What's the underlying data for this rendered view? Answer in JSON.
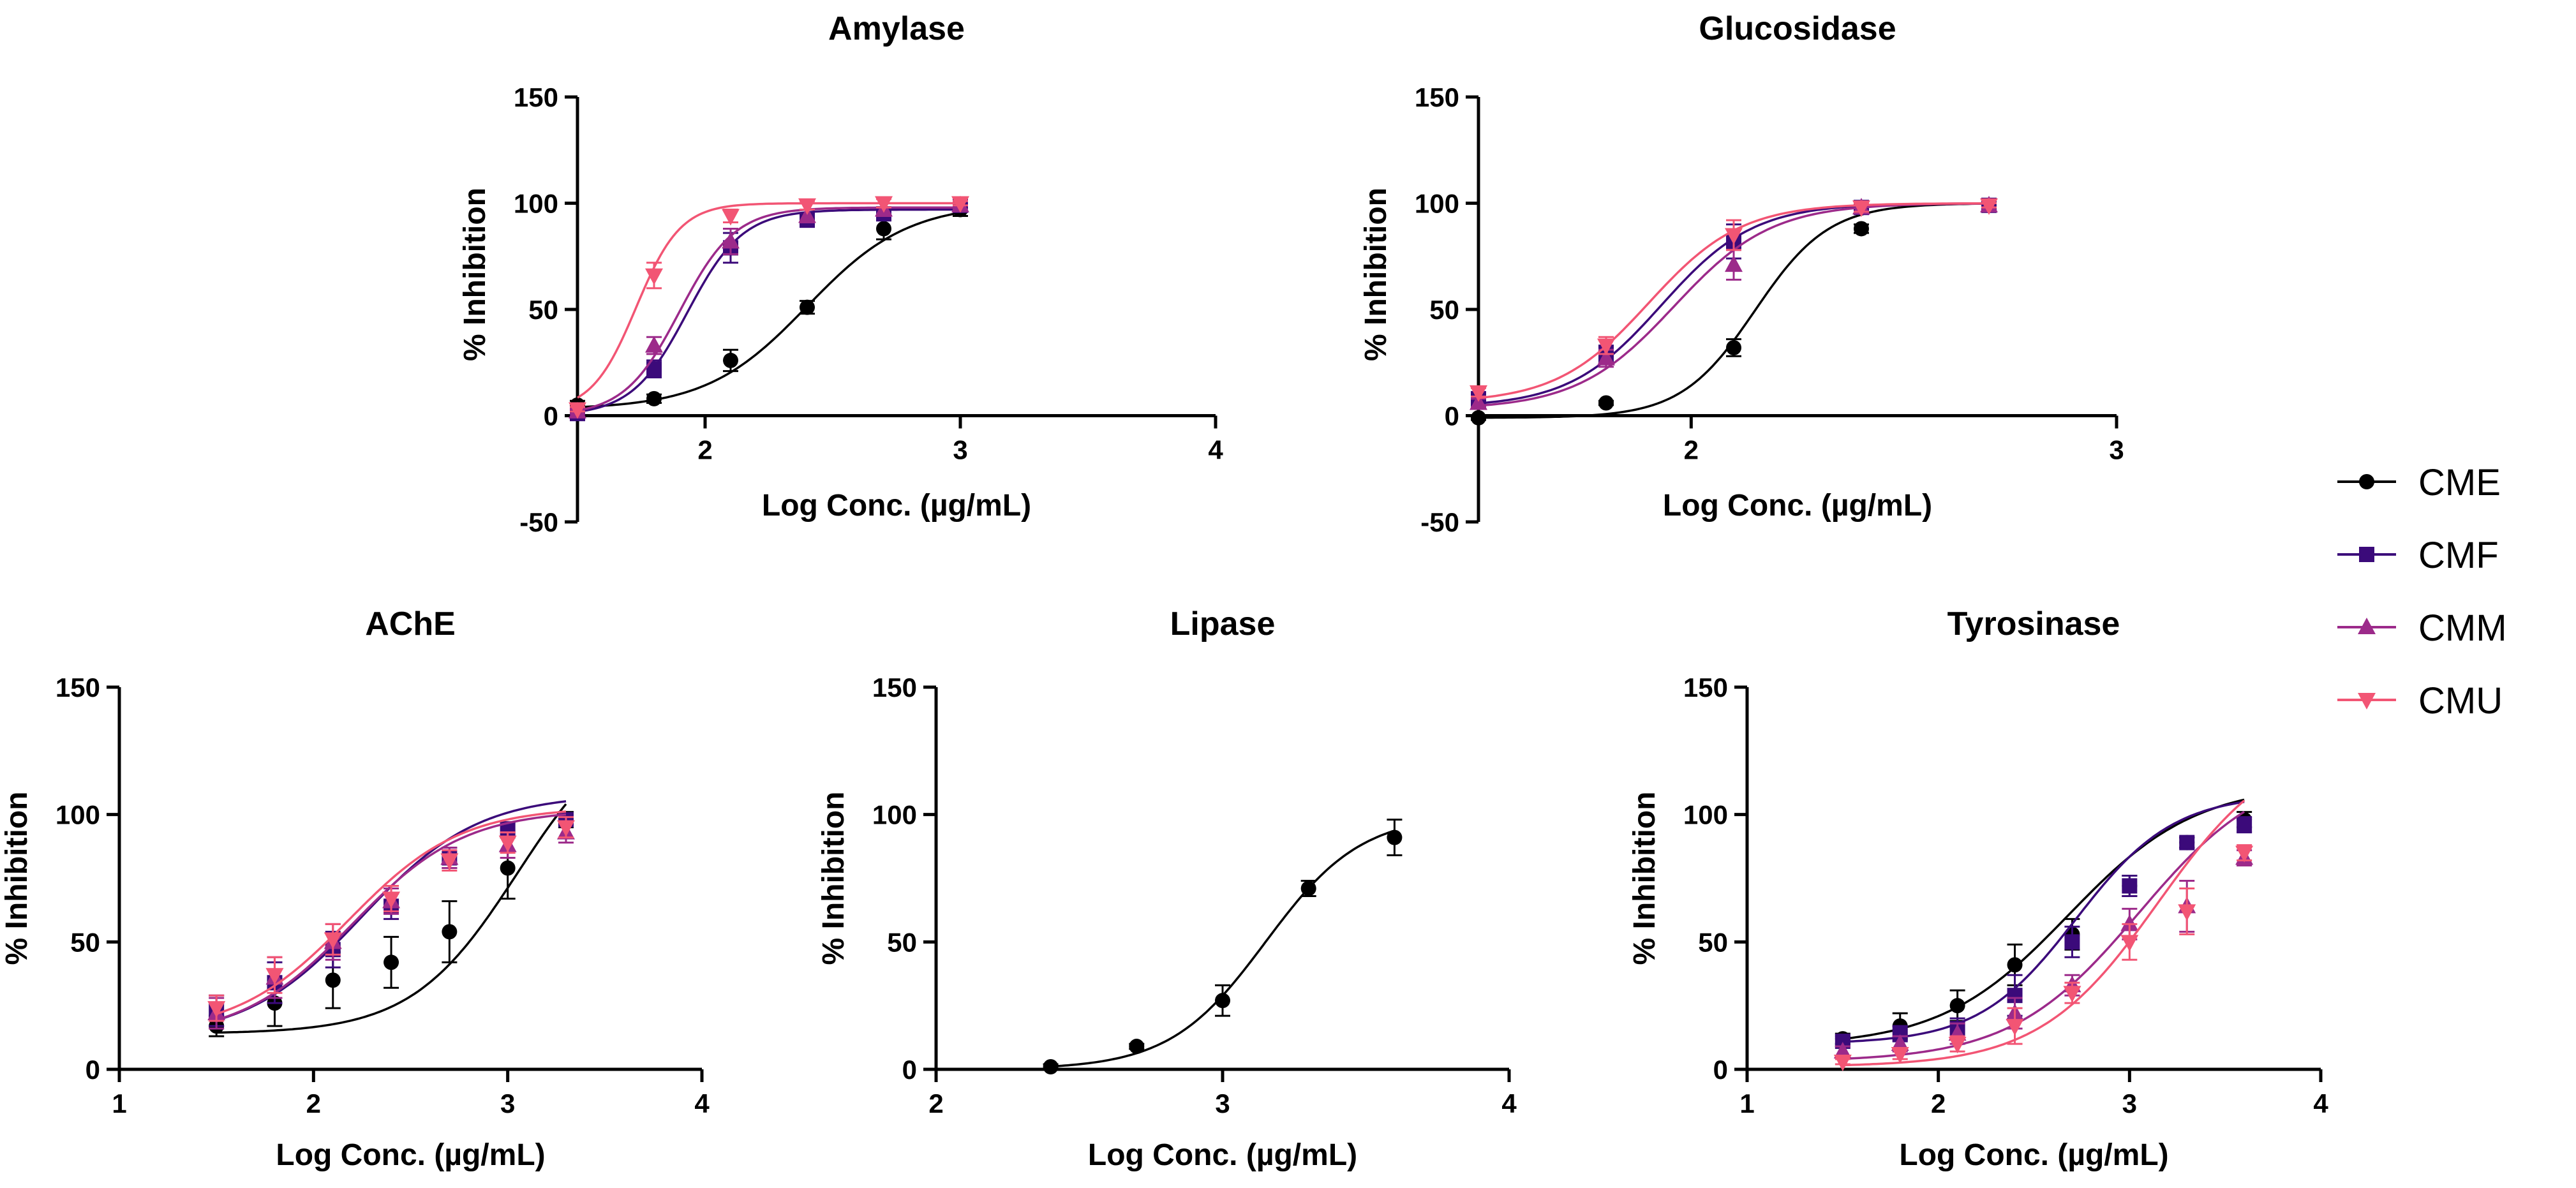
{
  "legend": {
    "items": [
      {
        "name": "CME",
        "color": "#000000",
        "marker": "circle"
      },
      {
        "name": "CMF",
        "color": "#3b0a7a",
        "marker": "square"
      },
      {
        "name": "CMM",
        "color": "#9c2a8a",
        "marker": "triangle-up"
      },
      {
        "name": "CMU",
        "color": "#f25574",
        "marker": "triangle-down"
      }
    ]
  },
  "chart_data": [
    {
      "id": "amylase",
      "type": "line",
      "title": "Amylase",
      "xlabel": "Log Conc. (µg/mL)",
      "ylabel": "% Inhibition",
      "xlim": [
        1.5,
        4
      ],
      "ylim": [
        -50,
        150
      ],
      "xticks": [
        2,
        3,
        4
      ],
      "yticks": [
        -50,
        0,
        50,
        100,
        150
      ],
      "series": [
        {
          "name": "CME",
          "x": [
            1.5,
            1.8,
            2.1,
            2.4,
            2.7,
            3.0
          ],
          "y": [
            5,
            8,
            26,
            51,
            88,
            97
          ],
          "err": [
            2,
            2,
            5,
            3,
            5,
            3
          ],
          "fit": {
            "bottom": 3,
            "top": 100,
            "logec50": 2.4,
            "hill": 2.2
          }
        },
        {
          "name": "CMF",
          "x": [
            1.5,
            1.8,
            2.1,
            2.4,
            2.7,
            3.0
          ],
          "y": [
            1,
            22,
            79,
            92,
            95,
            99
          ],
          "err": [
            1,
            4,
            7,
            3,
            3,
            2
          ],
          "fit": {
            "bottom": 0,
            "top": 97,
            "logec50": 1.93,
            "hill": 4.0
          }
        },
        {
          "name": "CMM",
          "x": [
            1.5,
            1.8,
            2.1,
            2.4,
            2.7,
            3.0
          ],
          "y": [
            2,
            33,
            82,
            94,
            97,
            99
          ],
          "err": [
            1,
            4,
            6,
            3,
            3,
            2
          ],
          "fit": {
            "bottom": 0,
            "top": 98,
            "logec50": 1.9,
            "hill": 4.0
          }
        },
        {
          "name": "CMU",
          "x": [
            1.5,
            1.8,
            2.1,
            2.4,
            2.7,
            3.0
          ],
          "y": [
            3,
            66,
            94,
            99,
            100,
            100
          ],
          "err": [
            1,
            6,
            3,
            2,
            2,
            1
          ],
          "fit": {
            "bottom": 2,
            "top": 100,
            "logec50": 1.73,
            "hill": 5.0
          }
        }
      ]
    },
    {
      "id": "glucosidase",
      "type": "line",
      "title": "Glucosidase",
      "xlabel": "Log Conc. (µg/mL)",
      "ylabel": "% Inhibition",
      "xlim": [
        1.5,
        3
      ],
      "ylim": [
        -50,
        150
      ],
      "xticks": [
        2,
        3
      ],
      "yticks": [
        -50,
        0,
        50,
        100,
        150
      ],
      "series": [
        {
          "name": "CME",
          "x": [
            1.5,
            1.8,
            2.1,
            2.4,
            2.7
          ],
          "y": [
            -1,
            6,
            32,
            88,
            99
          ],
          "err": [
            1,
            1,
            4,
            2,
            1
          ],
          "fit": {
            "bottom": -1,
            "top": 100,
            "logec50": 2.15,
            "hill": 5.0
          }
        },
        {
          "name": "CMF",
          "x": [
            1.5,
            1.8,
            2.1,
            2.4,
            2.7
          ],
          "y": [
            8,
            29,
            82,
            98,
            99
          ],
          "err": [
            2,
            4,
            8,
            2,
            1
          ],
          "fit": {
            "bottom": 4,
            "top": 100,
            "logec50": 1.93,
            "hill": 4.0
          }
        },
        {
          "name": "CMM",
          "x": [
            1.5,
            1.8,
            2.1,
            2.4,
            2.7
          ],
          "y": [
            6,
            27,
            71,
            98,
            99
          ],
          "err": [
            2,
            4,
            7,
            2,
            1
          ],
          "fit": {
            "bottom": 3,
            "top": 100,
            "logec50": 1.96,
            "hill": 3.8
          }
        },
        {
          "name": "CMU",
          "x": [
            1.5,
            1.8,
            2.1,
            2.4,
            2.7
          ],
          "y": [
            11,
            33,
            85,
            98,
            99
          ],
          "err": [
            2,
            4,
            7,
            2,
            1
          ],
          "fit": {
            "bottom": 6,
            "top": 100,
            "logec50": 1.9,
            "hill": 4.0
          }
        }
      ]
    },
    {
      "id": "ache",
      "type": "line",
      "title": "AChE",
      "xlabel": "Log Conc. (µg/mL)",
      "ylabel": "% Inhibition",
      "xlim": [
        1,
        4
      ],
      "ylim": [
        0,
        150
      ],
      "xticks": [
        1,
        2,
        3,
        4
      ],
      "yticks": [
        0,
        50,
        100,
        150
      ],
      "series": [
        {
          "name": "CME",
          "x": [
            1.5,
            1.8,
            2.1,
            2.4,
            2.7,
            3.0,
            3.3
          ],
          "y": [
            17,
            26,
            35,
            42,
            54,
            79,
            98
          ],
          "err": [
            4,
            9,
            11,
            10,
            12,
            12,
            3
          ],
          "fit": {
            "bottom": 14,
            "top": 140,
            "logec50": 3.05,
            "hill": 1.6
          }
        },
        {
          "name": "CMF",
          "x": [
            1.5,
            1.8,
            2.1,
            2.4,
            2.7,
            3.0,
            3.3
          ],
          "y": [
            23,
            34,
            47,
            64,
            83,
            94,
            98
          ],
          "err": [
            6,
            8,
            7,
            5,
            4,
            3,
            2
          ],
          "fit": {
            "bottom": 12,
            "top": 108,
            "logec50": 2.25,
            "hill": 1.45
          }
        },
        {
          "name": "CMM",
          "x": [
            1.5,
            1.8,
            2.1,
            2.4,
            2.7,
            3.0,
            3.3
          ],
          "y": [
            22,
            36,
            50,
            66,
            83,
            88,
            93
          ],
          "err": [
            6,
            8,
            7,
            5,
            4,
            5,
            4
          ],
          "fit": {
            "bottom": 12,
            "top": 102,
            "logec50": 2.2,
            "hill": 1.5
          }
        },
        {
          "name": "CMU",
          "x": [
            1.5,
            1.8,
            2.1,
            2.4,
            2.7,
            3.0,
            3.3
          ],
          "y": [
            24,
            37,
            51,
            67,
            82,
            89,
            95
          ],
          "err": [
            5,
            7,
            6,
            5,
            4,
            4,
            4
          ],
          "fit": {
            "bottom": 14,
            "top": 103,
            "logec50": 2.18,
            "hill": 1.5
          }
        }
      ]
    },
    {
      "id": "lipase",
      "type": "line",
      "title": "Lipase",
      "xlabel": "Log Conc. (µg/mL)",
      "ylabel": "% Inhibition",
      "xlim": [
        2,
        4
      ],
      "ylim": [
        0,
        150
      ],
      "xticks": [
        2,
        3,
        4
      ],
      "yticks": [
        0,
        50,
        100,
        150
      ],
      "series": [
        {
          "name": "CME",
          "x": [
            2.4,
            2.7,
            3.0,
            3.3,
            3.6
          ],
          "y": [
            1,
            9,
            27,
            71,
            91
          ],
          "err": [
            1,
            1,
            6,
            3,
            7
          ],
          "fit": {
            "bottom": 0,
            "top": 100,
            "logec50": 3.15,
            "hill": 2.6
          }
        }
      ]
    },
    {
      "id": "tyrosinase",
      "type": "line",
      "title": "Tyrosinase",
      "xlabel": "Log Conc. (µg/mL)",
      "ylabel": "% Inhibition",
      "xlim": [
        1,
        4
      ],
      "ylim": [
        0,
        150
      ],
      "xticks": [
        1,
        2,
        3,
        4
      ],
      "yticks": [
        0,
        50,
        100,
        150
      ],
      "series": [
        {
          "name": "CME",
          "x": [
            1.5,
            1.8,
            2.1,
            2.4,
            2.7,
            3.0,
            3.3,
            3.6
          ],
          "y": [
            12,
            17,
            25,
            41,
            53,
            72,
            89,
            98
          ],
          "err": [
            2,
            5,
            6,
            8,
            6,
            4,
            2,
            3
          ],
          "fit": {
            "bottom": 9,
            "top": 112,
            "logec50": 2.68,
            "hill": 1.3
          }
        },
        {
          "name": "CMF",
          "x": [
            1.5,
            1.8,
            2.1,
            2.4,
            2.7,
            3.0,
            3.3,
            3.6
          ],
          "y": [
            11,
            14,
            16,
            29,
            50,
            72,
            89,
            96
          ],
          "err": [
            2,
            3,
            4,
            8,
            6,
            4,
            2,
            3
          ],
          "fit": {
            "bottom": 10,
            "top": 108,
            "logec50": 2.72,
            "hill": 1.7
          }
        },
        {
          "name": "CMM",
          "x": [
            1.5,
            1.8,
            2.1,
            2.4,
            2.7,
            3.0,
            3.3,
            3.6
          ],
          "y": [
            7,
            10,
            14,
            22,
            33,
            57,
            64,
            83
          ],
          "err": [
            2,
            3,
            4,
            6,
            4,
            6,
            10,
            3
          ],
          "fit": {
            "bottom": 3,
            "top": 120,
            "logec50": 3.05,
            "hill": 1.3
          }
        },
        {
          "name": "CMU",
          "x": [
            1.5,
            1.8,
            2.1,
            2.4,
            2.7,
            3.0,
            3.3,
            3.6
          ],
          "y": [
            3,
            6,
            10,
            17,
            30,
            50,
            62,
            85
          ],
          "err": [
            1,
            2,
            3,
            7,
            4,
            7,
            9,
            3
          ],
          "fit": {
            "bottom": 1,
            "top": 130,
            "logec50": 3.15,
            "hill": 1.4
          }
        }
      ]
    }
  ]
}
